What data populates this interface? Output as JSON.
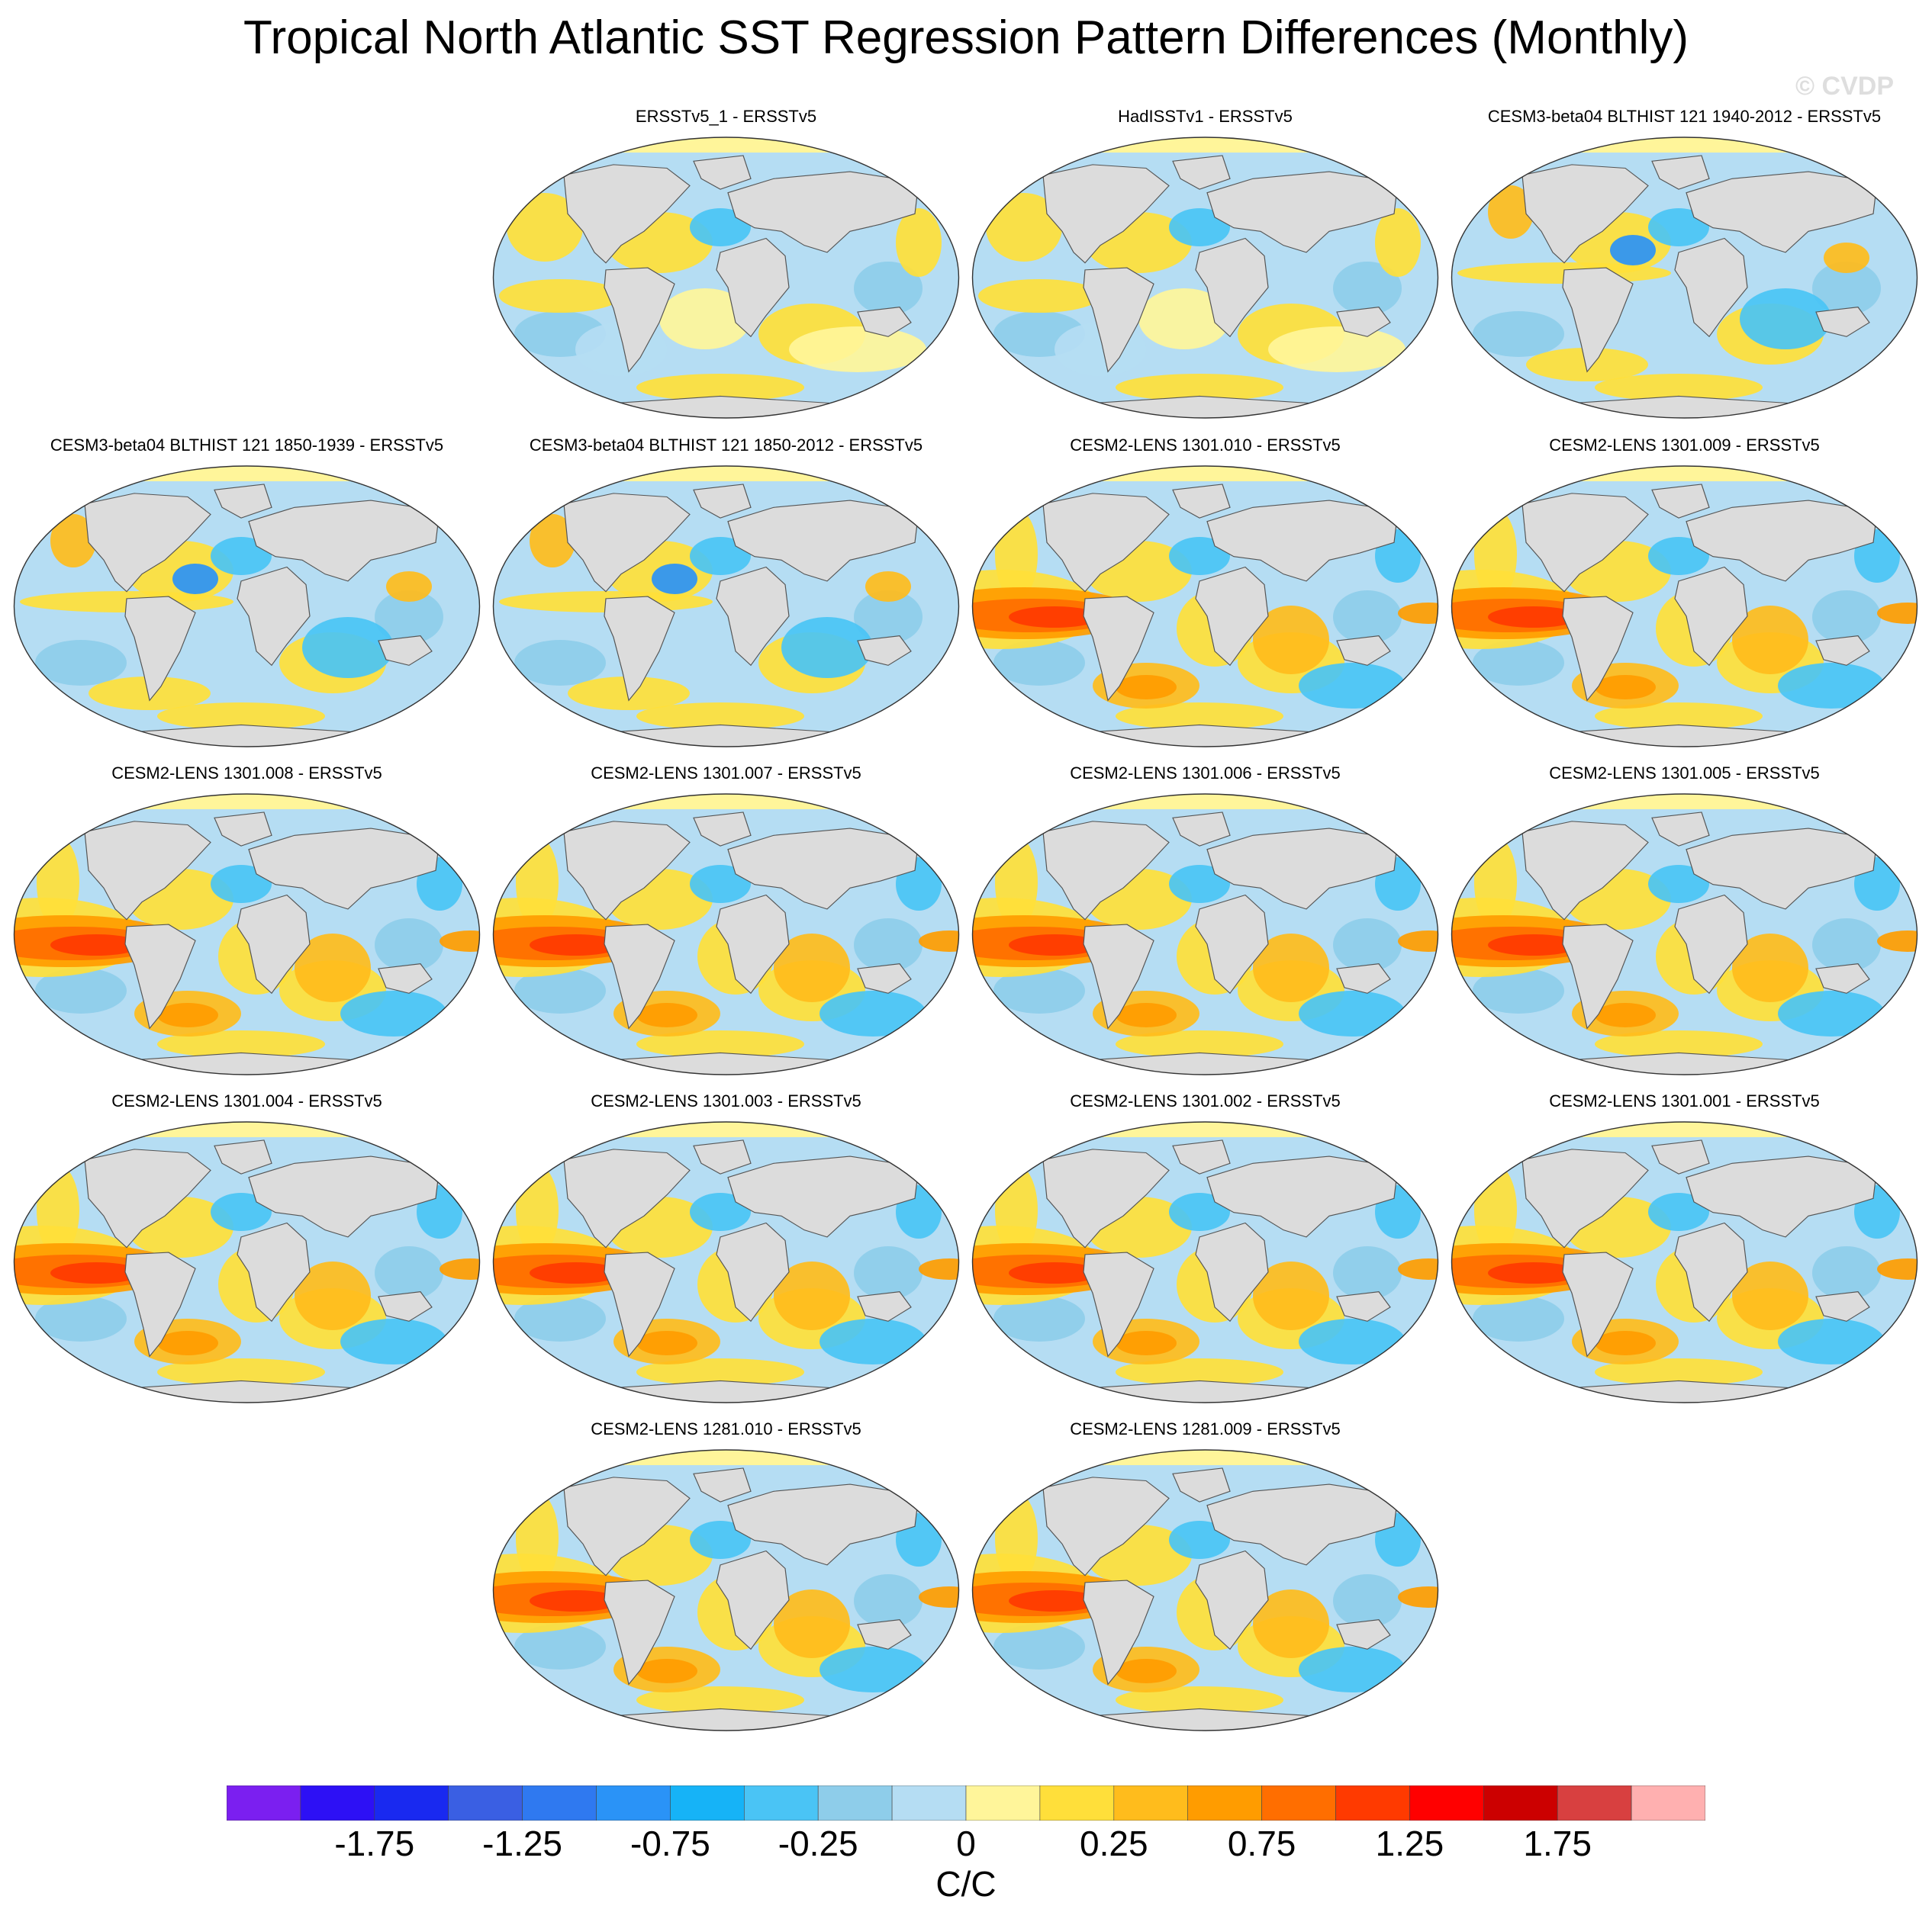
{
  "title": "Tropical North Atlantic SST Regression Pattern Differences (Monthly)",
  "watermark": "© CVDP",
  "colors": {
    "land": "#dcdcdc",
    "coast": "#555555",
    "ocean_base": "#b5ddf3"
  },
  "panels": [
    {
      "label": "ERSSTv5_1 - ERSSTv5",
      "pattern": "weak"
    },
    {
      "label": "HadISSTv1 - ERSSTv5",
      "pattern": "weak"
    },
    {
      "label": "CESM3-beta04 BLTHIST 121 1940-2012 - ERSSTv5",
      "pattern": "moderate"
    },
    {
      "label": "CESM3-beta04 BLTHIST 121 1850-1939 - ERSSTv5",
      "pattern": "moderate"
    },
    {
      "label": "CESM3-beta04 BLTHIST 121 1850-2012 - ERSSTv5",
      "pattern": "moderate"
    },
    {
      "label": "CESM2-LENS 1301.010 - ERSSTv5",
      "pattern": "strong"
    },
    {
      "label": "CESM2-LENS 1301.009 - ERSSTv5",
      "pattern": "strong"
    },
    {
      "label": "CESM2-LENS 1301.008 - ERSSTv5",
      "pattern": "strong"
    },
    {
      "label": "CESM2-LENS 1301.007 - ERSSTv5",
      "pattern": "strong"
    },
    {
      "label": "CESM2-LENS 1301.006 - ERSSTv5",
      "pattern": "strong"
    },
    {
      "label": "CESM2-LENS 1301.005 - ERSSTv5",
      "pattern": "strong"
    },
    {
      "label": "CESM2-LENS 1301.004 - ERSSTv5",
      "pattern": "strong"
    },
    {
      "label": "CESM2-LENS 1301.003 - ERSSTv5",
      "pattern": "strong"
    },
    {
      "label": "CESM2-LENS 1301.002 - ERSSTv5",
      "pattern": "strong"
    },
    {
      "label": "CESM2-LENS 1301.001 - ERSSTv5",
      "pattern": "strong"
    },
    {
      "label": "CESM2-LENS 1281.010 - ERSSTv5",
      "pattern": "strong"
    },
    {
      "label": "CESM2-LENS 1281.009 - ERSSTv5",
      "pattern": "strong"
    }
  ],
  "colorbar": {
    "colors": [
      "#7b1ff0",
      "#2d10f5",
      "#1929f0",
      "#3a5fe3",
      "#2f79f0",
      "#2a93f7",
      "#16b3f7",
      "#4ac4f5",
      "#8ecdea",
      "#b5ddf3",
      "#fff59a",
      "#ffdf3a",
      "#ffbc1c",
      "#ff9c00",
      "#ff6e00",
      "#ff3a00",
      "#ff0000",
      "#cc0000",
      "#d84040",
      "#ffb0b0"
    ],
    "labels": [
      "-1.75",
      "-1.25",
      "-0.75",
      "-0.25",
      "0",
      "0.25",
      "0.75",
      "1.25",
      "1.75"
    ],
    "label_bins": [
      2,
      4,
      6,
      8,
      10,
      12,
      14,
      16,
      18
    ]
  },
  "units": "C/C"
}
